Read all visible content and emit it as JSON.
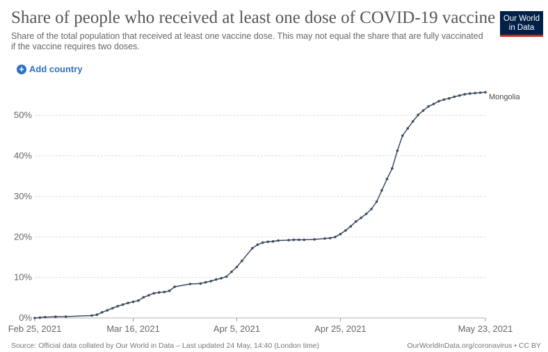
{
  "header": {
    "title": "Share of people who received at least one dose of COVID-19 vaccine",
    "subtitle": "Share of the total population that received at least one vaccine dose. This may not equal the share that are fully vaccinated if the vaccine requires two doses.",
    "logo_line1": "Our World",
    "logo_line2": "in Data",
    "logo_colors": {
      "background": "#002147",
      "stripe": "#ce261e"
    }
  },
  "controls": {
    "add_country_label": "Add country",
    "add_country_icon": "plus-circle-icon"
  },
  "footer": {
    "source": "Source: Official data collated by Our World in Data – Last updated 24 May, 14:40 (London time)",
    "attribution": "OurWorldInData.org/coronavirus • CC BY"
  },
  "chart_data": {
    "type": "line",
    "title": "Share of people who received at least one dose of COVID-19 vaccine",
    "ylim": [
      0,
      55
    ],
    "y_ticks": [
      0,
      10,
      20,
      30,
      40,
      50
    ],
    "y_tick_labels": [
      "0%",
      "10%",
      "20%",
      "30%",
      "40%",
      "50%"
    ],
    "x_range": [
      "2021-02-25",
      "2021-05-23"
    ],
    "x_tick_labels": [
      "Feb 25, 2021",
      "Mar 16, 2021",
      "Apr 5, 2021",
      "Apr 25, 2021",
      "May 23, 2021"
    ],
    "x_tick_dates": [
      "2021-02-25",
      "2021-03-16",
      "2021-04-05",
      "2021-04-25",
      "2021-05-23"
    ],
    "grid": true,
    "line_color": "#3c4a5f",
    "series": [
      {
        "name": "Mongolia",
        "points": [
          [
            "2021-02-25",
            0.0
          ],
          [
            "2021-02-26",
            0.1
          ],
          [
            "2021-02-27",
            0.2
          ],
          [
            "2021-03-01",
            0.3
          ],
          [
            "2021-03-03",
            0.35
          ],
          [
            "2021-03-08",
            0.6
          ],
          [
            "2021-03-09",
            0.8
          ],
          [
            "2021-03-10",
            1.4
          ],
          [
            "2021-03-11",
            1.9
          ],
          [
            "2021-03-12",
            2.4
          ],
          [
            "2021-03-13",
            2.9
          ],
          [
            "2021-03-14",
            3.3
          ],
          [
            "2021-03-15",
            3.7
          ],
          [
            "2021-03-16",
            4.0
          ],
          [
            "2021-03-17",
            4.3
          ],
          [
            "2021-03-18",
            5.1
          ],
          [
            "2021-03-19",
            5.6
          ],
          [
            "2021-03-20",
            6.1
          ],
          [
            "2021-03-21",
            6.3
          ],
          [
            "2021-03-22",
            6.4
          ],
          [
            "2021-03-23",
            6.7
          ],
          [
            "2021-03-24",
            7.7
          ],
          [
            "2021-03-27",
            8.4
          ],
          [
            "2021-03-29",
            8.5
          ],
          [
            "2021-03-30",
            8.8
          ],
          [
            "2021-03-31",
            9.1
          ],
          [
            "2021-04-01",
            9.5
          ],
          [
            "2021-04-02",
            9.8
          ],
          [
            "2021-04-03",
            10.2
          ],
          [
            "2021-04-04",
            11.4
          ],
          [
            "2021-04-05",
            12.6
          ],
          [
            "2021-04-06",
            14.1
          ],
          [
            "2021-04-08",
            17.2
          ],
          [
            "2021-04-09",
            18.1
          ],
          [
            "2021-04-10",
            18.6
          ],
          [
            "2021-04-11",
            18.8
          ],
          [
            "2021-04-12",
            18.9
          ],
          [
            "2021-04-13",
            19.1
          ],
          [
            "2021-04-15",
            19.2
          ],
          [
            "2021-04-16",
            19.3
          ],
          [
            "2021-04-17",
            19.3
          ],
          [
            "2021-04-18",
            19.3
          ],
          [
            "2021-04-20",
            19.4
          ],
          [
            "2021-04-22",
            19.6
          ],
          [
            "2021-04-23",
            19.7
          ],
          [
            "2021-04-24",
            20.0
          ],
          [
            "2021-04-25",
            20.7
          ],
          [
            "2021-04-26",
            21.6
          ],
          [
            "2021-04-27",
            22.6
          ],
          [
            "2021-04-28",
            23.8
          ],
          [
            "2021-04-29",
            24.7
          ],
          [
            "2021-04-30",
            25.7
          ],
          [
            "2021-05-01",
            26.9
          ],
          [
            "2021-05-02",
            28.7
          ],
          [
            "2021-05-03",
            31.5
          ],
          [
            "2021-05-04",
            34.3
          ],
          [
            "2021-05-05",
            36.9
          ],
          [
            "2021-05-06",
            41.3
          ],
          [
            "2021-05-07",
            45.0
          ],
          [
            "2021-05-08",
            46.8
          ],
          [
            "2021-05-09",
            48.5
          ],
          [
            "2021-05-10",
            50.1
          ],
          [
            "2021-05-11",
            51.2
          ],
          [
            "2021-05-12",
            52.2
          ],
          [
            "2021-05-13",
            52.8
          ],
          [
            "2021-05-14",
            53.5
          ],
          [
            "2021-05-15",
            53.9
          ],
          [
            "2021-05-16",
            54.2
          ],
          [
            "2021-05-17",
            54.6
          ],
          [
            "2021-05-18",
            54.9
          ],
          [
            "2021-05-19",
            55.2
          ],
          [
            "2021-05-20",
            55.4
          ],
          [
            "2021-05-21",
            55.5
          ],
          [
            "2021-05-22",
            55.6
          ],
          [
            "2021-05-23",
            55.7
          ]
        ]
      }
    ],
    "end_label": "Mongolia"
  }
}
